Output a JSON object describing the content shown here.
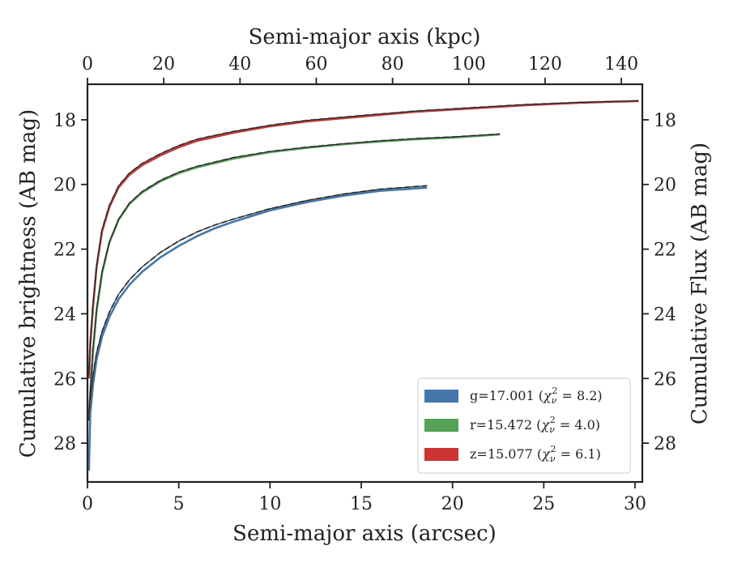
{
  "chart_data": {
    "type": "line",
    "xlabel_bottom": "Semi-major axis (arcsec)",
    "xlabel_top": "Semi-major axis (kpc)",
    "ylabel_left": "Cumulative brightness (AB mag)",
    "ylabel_right": "Cumulative Flux (AB mag)",
    "xlim": [
      0,
      30.4
    ],
    "ylim": [
      29.2,
      16.9
    ],
    "y_inverted": true,
    "xlim_top": [
      0,
      145.5
    ],
    "x_ticks": [
      0,
      5,
      10,
      15,
      20,
      25,
      30
    ],
    "x_tick_labels": [
      "0",
      "5",
      "10",
      "15",
      "20",
      "25",
      "30"
    ],
    "x_top_ticks": [
      0,
      20,
      40,
      60,
      80,
      100,
      120,
      140
    ],
    "x_top_tick_labels": [
      "0",
      "20",
      "40",
      "60",
      "80",
      "100",
      "120",
      "140"
    ],
    "y_ticks": [
      18,
      20,
      22,
      24,
      26,
      28
    ],
    "y_tick_labels": [
      "18",
      "20",
      "22",
      "24",
      "26",
      "28"
    ],
    "grid": false,
    "legend_position": "lower-right",
    "legend": [
      {
        "prefix": "g=17.001 (",
        "chi": "χ",
        "sub": "ν",
        "sup": "2",
        "suffix": " = 8.2)",
        "color": "#4477aa"
      },
      {
        "prefix": "r=15.472 (",
        "chi": "χ",
        "sub": "ν",
        "sup": "2",
        "suffix": " = 4.0)",
        "color": "#55a155"
      },
      {
        "prefix": "z=15.077 (",
        "chi": "χ",
        "sub": "ν",
        "sup": "2",
        "suffix": " = 6.1)",
        "color": "#cc3333"
      }
    ],
    "series": [
      {
        "color": "#4477aa",
        "x": [
          0.08,
          0.15,
          0.3,
          0.5,
          0.8,
          1.2,
          1.7,
          2.3,
          3,
          4,
          5,
          6,
          7,
          8,
          10,
          12,
          14,
          16,
          18.6
        ],
        "y": [
          28.85,
          27.1,
          26.2,
          25.4,
          24.7,
          24.1,
          23.55,
          23.1,
          22.7,
          22.25,
          21.9,
          21.6,
          21.35,
          21.15,
          20.8,
          20.55,
          20.35,
          20.2,
          20.1
        ]
      },
      {
        "color": "#55a155",
        "x": [
          0.08,
          0.15,
          0.3,
          0.5,
          0.8,
          1.2,
          1.7,
          2.3,
          3,
          4,
          5,
          6,
          8,
          10,
          12,
          14,
          16,
          18,
          20,
          22.6
        ],
        "y": [
          27.3,
          26.5,
          25.2,
          23.9,
          22.75,
          21.8,
          21.1,
          20.6,
          20.25,
          19.9,
          19.65,
          19.47,
          19.2,
          19.0,
          18.87,
          18.76,
          18.67,
          18.6,
          18.55,
          18.45
        ]
      },
      {
        "color": "#cc3333",
        "x": [
          0.08,
          0.15,
          0.3,
          0.5,
          0.8,
          1.2,
          1.7,
          2.3,
          3,
          4,
          5,
          6,
          8,
          10,
          12,
          15,
          18,
          21,
          24,
          27,
          30.2
        ],
        "y": [
          26.0,
          25.0,
          23.8,
          22.55,
          21.45,
          20.7,
          20.1,
          19.7,
          19.4,
          19.1,
          18.85,
          18.65,
          18.4,
          18.2,
          18.05,
          17.9,
          17.75,
          17.65,
          17.55,
          17.47,
          17.42
        ]
      }
    ],
    "model_curves": [
      {
        "style": "dashed",
        "x": [
          0.08,
          0.15,
          0.3,
          0.5,
          0.8,
          1.2,
          1.7,
          2.3,
          3,
          4,
          5,
          6,
          7,
          8,
          10,
          12,
          14,
          16,
          18.6
        ],
        "y": [
          27.3,
          26.7,
          25.9,
          25.2,
          24.55,
          23.95,
          23.4,
          22.95,
          22.55,
          22.1,
          21.75,
          21.47,
          21.25,
          21.07,
          20.75,
          20.5,
          20.3,
          20.15,
          20.04
        ]
      },
      {
        "style": "dashed",
        "x": [
          0.08,
          0.15,
          0.3,
          0.5,
          0.8,
          1.2,
          1.7,
          2.3,
          3,
          4,
          5,
          6,
          8,
          10,
          12,
          14,
          16,
          18,
          20,
          22.6
        ],
        "y": [
          27.1,
          26.4,
          25.1,
          23.85,
          22.7,
          21.78,
          21.08,
          20.58,
          20.22,
          19.87,
          19.62,
          19.44,
          19.17,
          18.98,
          18.85,
          18.74,
          18.65,
          18.58,
          18.53,
          18.44
        ]
      },
      {
        "style": "dashed",
        "x": [
          0.08,
          0.15,
          0.3,
          0.5,
          0.8,
          1.2,
          1.7,
          2.3,
          3,
          4,
          5,
          6,
          8,
          10,
          12,
          15,
          18,
          21,
          24,
          27,
          30.2
        ],
        "y": [
          25.9,
          24.9,
          23.7,
          22.5,
          21.4,
          20.65,
          20.05,
          19.65,
          19.35,
          19.05,
          18.8,
          18.6,
          18.36,
          18.17,
          18.02,
          17.87,
          17.73,
          17.63,
          17.53,
          17.46,
          17.41
        ]
      }
    ]
  }
}
